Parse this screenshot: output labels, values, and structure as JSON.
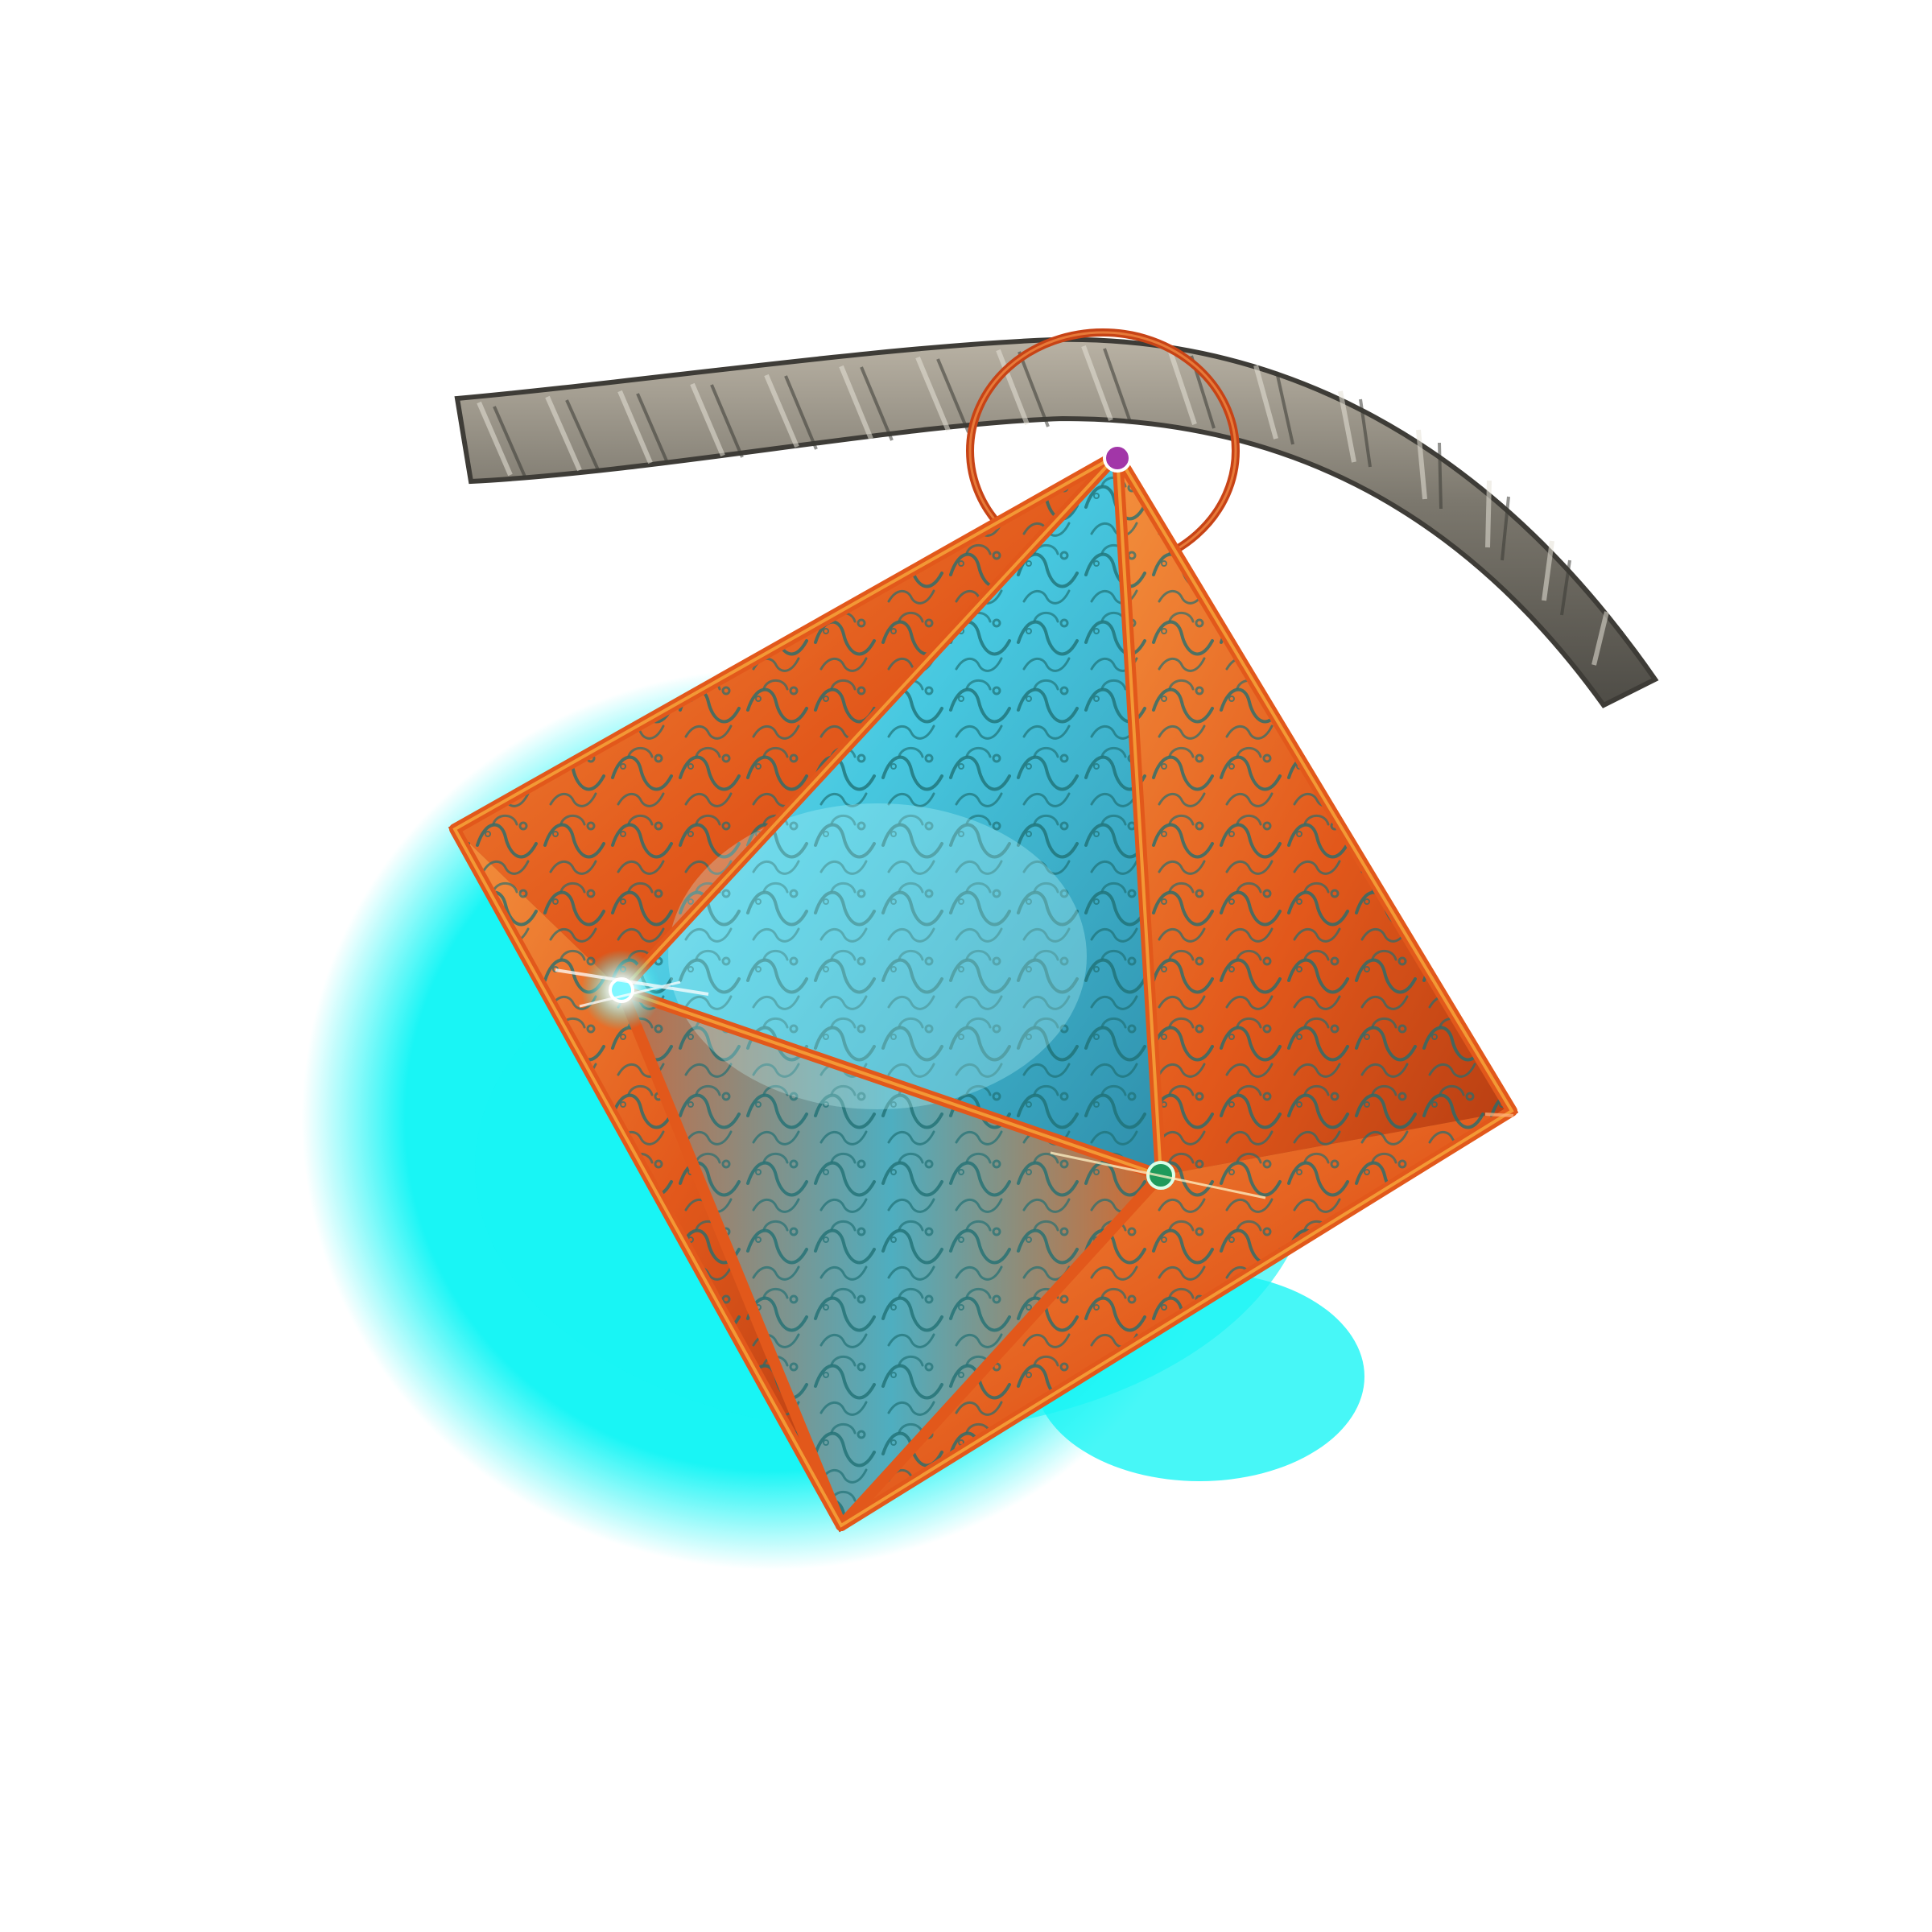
{
  "image": {
    "subject": "lantern",
    "background_color": "#ffffff",
    "glow_color": "#19f5f5",
    "lantern_frame_color": "#e2581b",
    "lantern_frame_highlight": "#f6a43a",
    "lantern_panel_color": "#47c8e0",
    "filigree_color": "#1d6e72",
    "rope_color": "#7b776d",
    "rope_highlight": "#b6b0a2",
    "ring_color": "#c74316",
    "gem_top_color": "#a236a8",
    "gem_left_color": "#7ff7ff",
    "gem_right_color": "#1f9a5b",
    "icons": [
      "rope-icon",
      "ring-icon",
      "lantern-icon",
      "gem-icon"
    ]
  }
}
